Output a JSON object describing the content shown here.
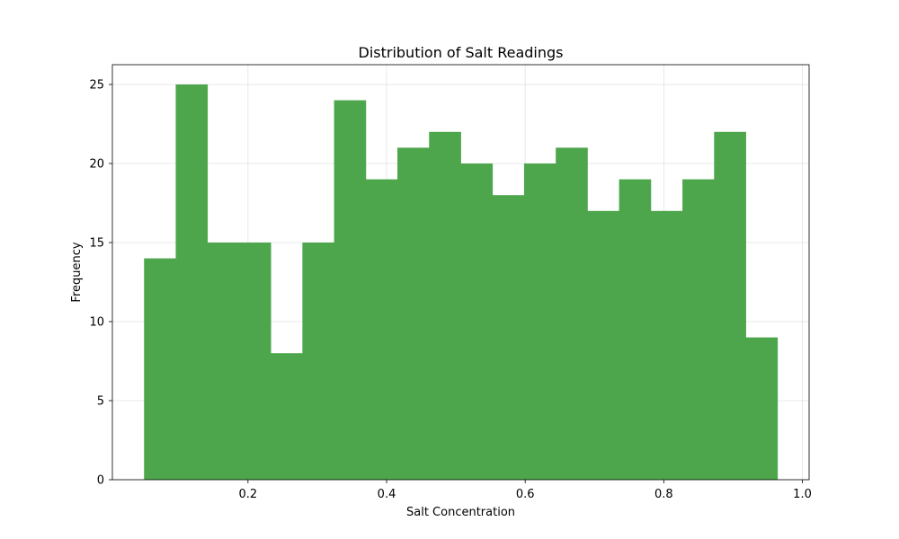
{
  "chart_data": {
    "type": "bar",
    "title": "Distribution of Salt Readings",
    "xlabel": "Salt Concentration",
    "ylabel": "Frequency",
    "bin_edges": [
      0.05,
      0.0957,
      0.1414,
      0.1871,
      0.2328,
      0.2785,
      0.3242,
      0.3699,
      0.4156,
      0.4613,
      0.507,
      0.5527,
      0.5984,
      0.6441,
      0.6898,
      0.7355,
      0.7812,
      0.8269,
      0.8726,
      0.9183,
      0.964
    ],
    "values": [
      14,
      25,
      15,
      15,
      8,
      15,
      24,
      19,
      21,
      22,
      20,
      18,
      20,
      21,
      17,
      19,
      17,
      19,
      22,
      9
    ],
    "xlim": [
      0.0043,
      1.0097
    ],
    "ylim": [
      0,
      26.25
    ],
    "x_ticks": [
      {
        "value": 0.2,
        "label": "0.2"
      },
      {
        "value": 0.4,
        "label": "0.4"
      },
      {
        "value": 0.6,
        "label": "0.6"
      },
      {
        "value": 0.8,
        "label": "0.8"
      },
      {
        "value": 1.0,
        "label": "1.0"
      }
    ],
    "y_ticks": [
      {
        "value": 0,
        "label": "0"
      },
      {
        "value": 5,
        "label": "5"
      },
      {
        "value": 10,
        "label": "10"
      },
      {
        "value": 15,
        "label": "15"
      },
      {
        "value": 20,
        "label": "20"
      },
      {
        "value": 25,
        "label": "25"
      }
    ],
    "bar_color": "#4ea64c",
    "grid": true
  }
}
